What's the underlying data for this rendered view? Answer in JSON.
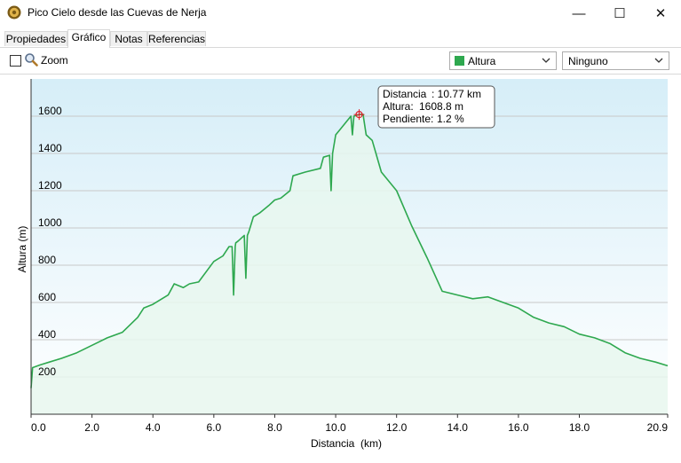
{
  "window": {
    "title": "Pico Cielo desde las Cuevas de Nerja",
    "minimize_glyph": "—",
    "maximize_glyph": "☐",
    "close_glyph": "✕"
  },
  "tabs": [
    {
      "label": "Propiedades",
      "active": false
    },
    {
      "label": "Gráfico",
      "active": true
    },
    {
      "label": "Notas",
      "active": false
    },
    {
      "label": "Referencias",
      "active": false
    }
  ],
  "toolbar": {
    "zoom_label": "Zoom",
    "zoom_checked": false,
    "series_select": {
      "value": "Altura",
      "swatch_color": "#2ea84f"
    },
    "second_select": {
      "value": "Ninguno"
    }
  },
  "chart_data": {
    "type": "area",
    "xlabel": "Distancia  (km)",
    "ylabel": "Altura (m)",
    "xlim": [
      0,
      20.9
    ],
    "ylim": [
      0,
      1800
    ],
    "x_ticks": [
      "0.0",
      "2.0",
      "4.0",
      "6.0",
      "8.0",
      "10.0",
      "12.0",
      "14.0",
      "16.0",
      "18.0",
      "20.9"
    ],
    "x_tick_values": [
      0,
      2,
      4,
      6,
      8,
      10,
      12,
      14,
      16,
      18,
      20.9
    ],
    "y_ticks": [
      "200",
      "400",
      "600",
      "800",
      "1000",
      "1200",
      "1400",
      "1600"
    ],
    "y_tick_values": [
      200,
      400,
      600,
      800,
      1000,
      1200,
      1400,
      1600
    ],
    "grid": true,
    "line_color": "#2ea84f",
    "fill_color": "#e8f7ee",
    "background_top": "#d6eef8",
    "background_bottom": "#ffffff",
    "series": [
      {
        "x": [
          0,
          0.05,
          0.3,
          0.6,
          1.0,
          1.5,
          2.0,
          2.5,
          3.0,
          3.5,
          3.7,
          4.0,
          4.5,
          4.7,
          5.0,
          5.2,
          5.5,
          6.0,
          6.3,
          6.5,
          6.6,
          6.65,
          6.7,
          6.72,
          6.8,
          7.0,
          7.05,
          7.1,
          7.15,
          7.3,
          7.5,
          7.8,
          8.0,
          8.2,
          8.5,
          8.6,
          9.0,
          9.5,
          9.6,
          9.8,
          9.85,
          9.9,
          10.0,
          10.3,
          10.5,
          10.55,
          10.6,
          10.77,
          10.9,
          11.0,
          11.2,
          11.5,
          12.0,
          12.5,
          13.0,
          13.5,
          14.0,
          14.5,
          15.0,
          15.5,
          16.0,
          16.5,
          17.0,
          17.5,
          18.0,
          18.5,
          19.0,
          19.5,
          20.0,
          20.5,
          20.9
        ],
        "y": [
          140,
          250,
          265,
          280,
          300,
          330,
          370,
          410,
          440,
          520,
          570,
          590,
          640,
          700,
          680,
          700,
          710,
          820,
          850,
          900,
          900,
          640,
          900,
          920,
          930,
          960,
          730,
          960,
          980,
          1060,
          1080,
          1120,
          1150,
          1160,
          1200,
          1280,
          1300,
          1320,
          1380,
          1390,
          1200,
          1400,
          1500,
          1560,
          1600,
          1500,
          1600,
          1609,
          1610,
          1500,
          1470,
          1300,
          1200,
          1010,
          840,
          660,
          640,
          620,
          630,
          600,
          570,
          520,
          490,
          470,
          430,
          410,
          380,
          330,
          300,
          280,
          260
        ]
      }
    ],
    "tooltip": {
      "rows": [
        {
          "label": "Distancia",
          "value": ": 10.77 km"
        },
        {
          "label": "Altura:",
          "value": "1608.8 m"
        },
        {
          "label": "Pendiente:",
          "value": "1.2 %"
        }
      ],
      "x": 10.77,
      "y": 1608.8
    }
  }
}
